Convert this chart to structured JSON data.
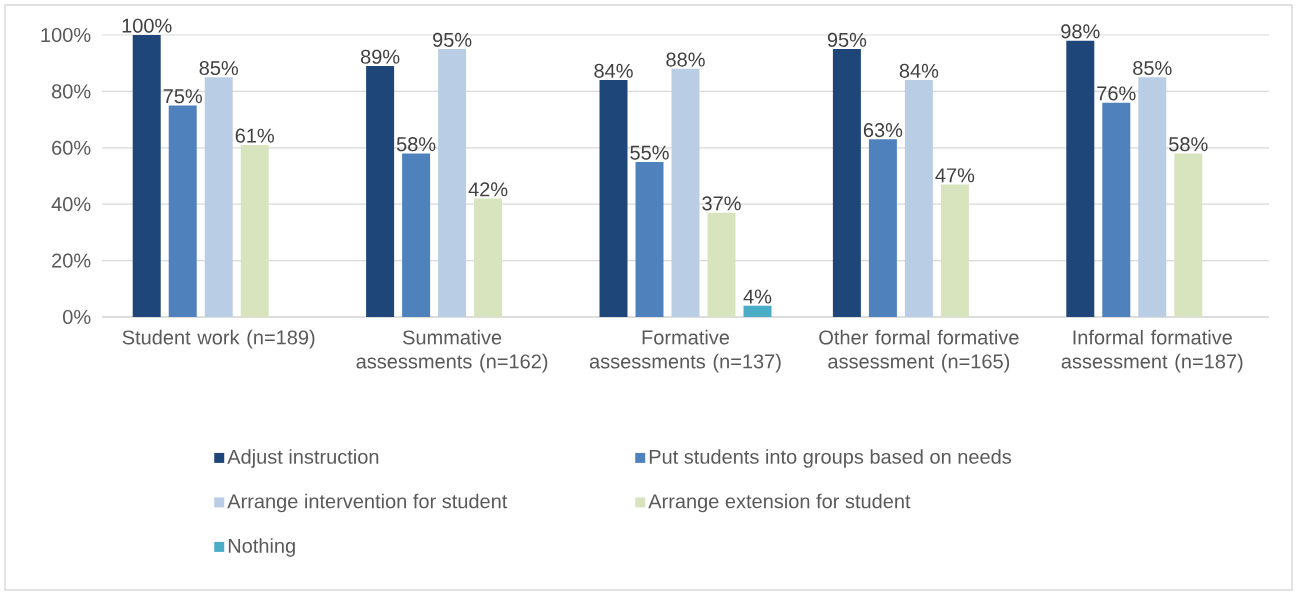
{
  "chart_data": {
    "type": "bar",
    "categories": [
      "Student work (n=189)",
      "Summative assessments (n=162)",
      "Formative assessments (n=137)",
      "Other formal formative assessment (n=165)",
      "Informal formative assessment (n=187)"
    ],
    "series": [
      {
        "name": "Adjust instruction",
        "color": "#1f4678",
        "values": [
          100,
          89,
          84,
          95,
          98
        ],
        "value_labels": [
          "100%",
          "89%",
          "84%",
          "95%",
          "98%"
        ]
      },
      {
        "name": "Put students into groups based on needs",
        "color": "#4f81bd",
        "values": [
          75,
          58,
          55,
          63,
          76
        ],
        "value_labels": [
          "75%",
          "58%",
          "55%",
          "63%",
          "76%"
        ]
      },
      {
        "name": "Arrange intervention for student",
        "color": "#b9cde5",
        "values": [
          85,
          95,
          88,
          84,
          85
        ],
        "value_labels": [
          "85%",
          "95%",
          "88%",
          "84%",
          "85%"
        ]
      },
      {
        "name": "Arrange extension for student",
        "color": "#d7e4bd",
        "values": [
          61,
          42,
          37,
          47,
          58
        ],
        "value_labels": [
          "61%",
          "42%",
          "37%",
          "47%",
          "58%"
        ]
      },
      {
        "name": "Nothing",
        "color": "#4bacc6",
        "values": [
          null,
          null,
          4,
          null,
          null
        ],
        "value_labels": [
          null,
          null,
          "4%",
          null,
          null
        ]
      }
    ],
    "ylim": [
      0,
      100
    ],
    "yticks": [
      {
        "value": 0,
        "label": "0%"
      },
      {
        "value": 20,
        "label": "20%"
      },
      {
        "value": 40,
        "label": "40%"
      },
      {
        "value": 60,
        "label": "60%"
      },
      {
        "value": 80,
        "label": "80%"
      },
      {
        "value": 100,
        "label": "100%"
      }
    ],
    "grid": "y",
    "legend": "bottom"
  }
}
